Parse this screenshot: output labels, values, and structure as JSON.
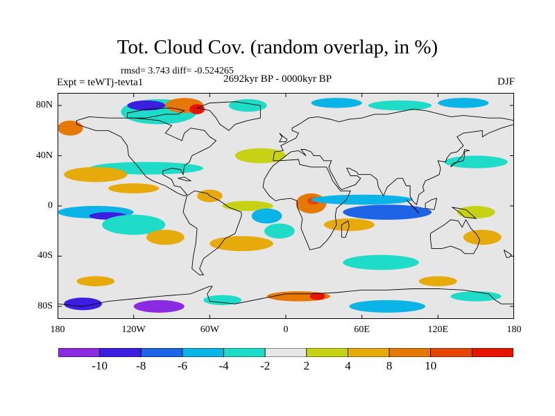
{
  "title": "Tot. Cloud Cov. (random overlap, in %)",
  "stats": "rmsd= 3.743 diff= -0.524265",
  "experiment": "Expt = teWTj-tevta1",
  "period": "2692kyr BP - 0000kyr BP",
  "season": "DJF",
  "map": {
    "lon_range": [
      -180,
      180
    ],
    "lat_range": [
      -90,
      90
    ],
    "y_ticks": [
      {
        "lat": 80,
        "label": "80N"
      },
      {
        "lat": 40,
        "label": "40N"
      },
      {
        "lat": 0,
        "label": "0"
      },
      {
        "lat": -40,
        "label": "40S"
      },
      {
        "lat": -80,
        "label": "80S"
      }
    ],
    "x_ticks": [
      {
        "lon": -180,
        "label": "180"
      },
      {
        "lon": -120,
        "label": "120W"
      },
      {
        "lon": -60,
        "label": "60W"
      },
      {
        "lon": 0,
        "label": "0"
      },
      {
        "lon": 60,
        "label": "60E"
      },
      {
        "lon": 120,
        "label": "120E"
      },
      {
        "lon": 180,
        "label": "180"
      }
    ]
  },
  "colorbar": {
    "colors": [
      "#8a2be2",
      "#3c1ee0",
      "#1e64e6",
      "#0ab4e6",
      "#1edcc8",
      "#e6e6e6",
      "#c8d214",
      "#e6aa0a",
      "#e67805",
      "#e64600",
      "#e61400"
    ],
    "labels": [
      {
        "boundary": 1,
        "label": "-10"
      },
      {
        "boundary": 2,
        "label": "-8"
      },
      {
        "boundary": 3,
        "label": "-6"
      },
      {
        "boundary": 4,
        "label": "-4"
      },
      {
        "boundary": 5,
        "label": "-2"
      },
      {
        "boundary": 6,
        "label": "2"
      },
      {
        "boundary": 7,
        "label": "4"
      },
      {
        "boundary": 8,
        "label": "8"
      },
      {
        "boundary": 9,
        "label": "10"
      }
    ]
  },
  "anomaly_regions": [
    {
      "lon": -110,
      "lat": 30,
      "rx": 45,
      "ry": 5,
      "class": 4
    },
    {
      "lon": -150,
      "lat": 25,
      "rx": 25,
      "ry": 6,
      "class": 7
    },
    {
      "lon": -120,
      "lat": 14,
      "rx": 20,
      "ry": 4,
      "class": 7
    },
    {
      "lon": -170,
      "lat": 62,
      "rx": 10,
      "ry": 6,
      "class": 8
    },
    {
      "lon": -150,
      "lat": -5,
      "rx": 30,
      "ry": 5,
      "class": 3
    },
    {
      "lon": -140,
      "lat": -8,
      "rx": 15,
      "ry": 3,
      "class": 1
    },
    {
      "lon": -120,
      "lat": -15,
      "rx": 25,
      "ry": 8,
      "class": 4
    },
    {
      "lon": -95,
      "lat": -25,
      "rx": 15,
      "ry": 6,
      "class": 7
    },
    {
      "lon": -60,
      "lat": 8,
      "rx": 10,
      "ry": 5,
      "class": 7
    },
    {
      "lon": -30,
      "lat": 0,
      "rx": 20,
      "ry": 4,
      "class": 6
    },
    {
      "lon": -35,
      "lat": -30,
      "rx": 25,
      "ry": 6,
      "class": 7
    },
    {
      "lon": -15,
      "lat": -8,
      "rx": 12,
      "ry": 6,
      "class": 3
    },
    {
      "lon": -5,
      "lat": -20,
      "rx": 12,
      "ry": 6,
      "class": 4
    },
    {
      "lon": 20,
      "lat": 2,
      "rx": 12,
      "ry": 8,
      "class": 8
    },
    {
      "lon": 22,
      "lat": 4,
      "rx": 5,
      "ry": 3,
      "class": 9
    },
    {
      "lon": 60,
      "lat": 5,
      "rx": 40,
      "ry": 4,
      "class": 3
    },
    {
      "lon": 80,
      "lat": -5,
      "rx": 35,
      "ry": 6,
      "class": 2
    },
    {
      "lon": 50,
      "lat": -15,
      "rx": 20,
      "ry": 5,
      "class": 7
    },
    {
      "lon": 75,
      "lat": -45,
      "rx": 30,
      "ry": 6,
      "class": 4
    },
    {
      "lon": 150,
      "lat": 35,
      "rx": 25,
      "ry": 5,
      "class": 4
    },
    {
      "lon": 150,
      "lat": -5,
      "rx": 15,
      "ry": 5,
      "class": 6
    },
    {
      "lon": 155,
      "lat": -25,
      "rx": 15,
      "ry": 6,
      "class": 7
    },
    {
      "lon": -20,
      "lat": 40,
      "rx": 20,
      "ry": 6,
      "class": 6
    },
    {
      "lon": -100,
      "lat": 75,
      "rx": 30,
      "ry": 10,
      "class": 4
    },
    {
      "lon": -110,
      "lat": 80,
      "rx": 15,
      "ry": 4,
      "class": 1
    },
    {
      "lon": -80,
      "lat": 80,
      "rx": 15,
      "ry": 6,
      "class": 8
    },
    {
      "lon": -70,
      "lat": 77,
      "rx": 6,
      "ry": 4,
      "class": 10
    },
    {
      "lon": -30,
      "lat": 80,
      "rx": 15,
      "ry": 5,
      "class": 4
    },
    {
      "lon": 40,
      "lat": 82,
      "rx": 20,
      "ry": 4,
      "class": 3
    },
    {
      "lon": 90,
      "lat": 80,
      "rx": 25,
      "ry": 4,
      "class": 4
    },
    {
      "lon": 140,
      "lat": 82,
      "rx": 20,
      "ry": 4,
      "class": 3
    },
    {
      "lon": -160,
      "lat": -78,
      "rx": 15,
      "ry": 5,
      "class": 1
    },
    {
      "lon": -100,
      "lat": -80,
      "rx": 20,
      "ry": 5,
      "class": 0
    },
    {
      "lon": -50,
      "lat": -75,
      "rx": 15,
      "ry": 4,
      "class": 4
    },
    {
      "lon": 10,
      "lat": -72,
      "rx": 25,
      "ry": 4,
      "class": 8
    },
    {
      "lon": 25,
      "lat": -72,
      "rx": 6,
      "ry": 3,
      "class": 10
    },
    {
      "lon": 80,
      "lat": -80,
      "rx": 30,
      "ry": 5,
      "class": 3
    },
    {
      "lon": 150,
      "lat": -72,
      "rx": 20,
      "ry": 4,
      "class": 4
    },
    {
      "lon": -150,
      "lat": -60,
      "rx": 15,
      "ry": 4,
      "class": 7
    },
    {
      "lon": 120,
      "lat": -60,
      "rx": 15,
      "ry": 4,
      "class": 7
    }
  ],
  "coastlines": [
    [
      [
        -165,
        65
      ],
      [
        -150,
        60
      ],
      [
        -140,
        60
      ],
      [
        -130,
        55
      ],
      [
        -125,
        48
      ],
      [
        -124,
        40
      ],
      [
        -118,
        33
      ],
      [
        -110,
        23
      ],
      [
        -105,
        20
      ],
      [
        -95,
        16
      ],
      [
        -85,
        10
      ],
      [
        -80,
        8
      ],
      [
        -78,
        9
      ],
      [
        -83,
        15
      ],
      [
        -88,
        16
      ],
      [
        -90,
        21
      ],
      [
        -97,
        25
      ],
      [
        -97,
        28
      ],
      [
        -90,
        30
      ],
      [
        -83,
        29
      ],
      [
        -81,
        25
      ],
      [
        -80,
        32
      ],
      [
        -76,
        35
      ],
      [
        -74,
        40
      ],
      [
        -70,
        42
      ],
      [
        -66,
        44
      ],
      [
        -60,
        47
      ],
      [
        -55,
        52
      ],
      [
        -60,
        55
      ],
      [
        -64,
        60
      ],
      [
        -75,
        62
      ],
      [
        -80,
        58
      ],
      [
        -82,
        52
      ],
      [
        -95,
        58
      ],
      [
        -90,
        64
      ],
      [
        -100,
        68
      ],
      [
        -120,
        70
      ],
      [
        -140,
        70
      ],
      [
        -155,
        71
      ],
      [
        -165,
        68
      ],
      [
        -165,
        65
      ]
    ],
    [
      [
        -78,
        8
      ],
      [
        -80,
        0
      ],
      [
        -81,
        -5
      ],
      [
        -76,
        -14
      ],
      [
        -70,
        -18
      ],
      [
        -71,
        -30
      ],
      [
        -73,
        -40
      ],
      [
        -74,
        -50
      ],
      [
        -68,
        -55
      ],
      [
        -65,
        -55
      ],
      [
        -68,
        -50
      ],
      [
        -65,
        -42
      ],
      [
        -57,
        -36
      ],
      [
        -53,
        -33
      ],
      [
        -48,
        -26
      ],
      [
        -40,
        -22
      ],
      [
        -35,
        -8
      ],
      [
        -35,
        -5
      ],
      [
        -45,
        -1
      ],
      [
        -52,
        4
      ],
      [
        -60,
        8
      ],
      [
        -62,
        10
      ],
      [
        -72,
        12
      ],
      [
        -78,
        8
      ]
    ],
    [
      [
        -18,
        15
      ],
      [
        -17,
        21
      ],
      [
        -13,
        28
      ],
      [
        -10,
        32
      ],
      [
        -5,
        36
      ],
      [
        10,
        37
      ],
      [
        11,
        33
      ],
      [
        20,
        31
      ],
      [
        32,
        31
      ],
      [
        34,
        27
      ],
      [
        37,
        20
      ],
      [
        43,
        12
      ],
      [
        51,
        12
      ],
      [
        48,
        5
      ],
      [
        40,
        -2
      ],
      [
        39,
        -8
      ],
      [
        40,
        -15
      ],
      [
        35,
        -24
      ],
      [
        32,
        -28
      ],
      [
        27,
        -33
      ],
      [
        19,
        -35
      ],
      [
        17,
        -30
      ],
      [
        12,
        -18
      ],
      [
        13,
        -10
      ],
      [
        9,
        -1
      ],
      [
        9,
        4
      ],
      [
        4,
        6
      ],
      [
        -5,
        5
      ],
      [
        -8,
        4
      ],
      [
        -13,
        8
      ],
      [
        -18,
        15
      ]
    ],
    [
      [
        -10,
        36
      ],
      [
        -9,
        43
      ],
      [
        -2,
        44
      ],
      [
        -4,
        48
      ],
      [
        2,
        51
      ],
      [
        8,
        54
      ],
      [
        10,
        58
      ],
      [
        5,
        60
      ],
      [
        5,
        62
      ],
      [
        12,
        66
      ],
      [
        18,
        70
      ],
      [
        25,
        71
      ],
      [
        35,
        69
      ],
      [
        42,
        67
      ],
      [
        50,
        69
      ],
      [
        60,
        70
      ],
      [
        70,
        73
      ],
      [
        80,
        73
      ],
      [
        100,
        77
      ],
      [
        110,
        76
      ],
      [
        130,
        71
      ],
      [
        140,
        72
      ],
      [
        160,
        70
      ],
      [
        170,
        70
      ],
      [
        180,
        68
      ],
      [
        180,
        65
      ],
      [
        170,
        62
      ],
      [
        160,
        58
      ],
      [
        155,
        55
      ],
      [
        155,
        60
      ],
      [
        140,
        58
      ],
      [
        135,
        55
      ],
      [
        140,
        48
      ],
      [
        135,
        43
      ],
      [
        130,
        42
      ],
      [
        127,
        38
      ],
      [
        126,
        35
      ],
      [
        120,
        36
      ],
      [
        122,
        30
      ],
      [
        121,
        25
      ],
      [
        117,
        23
      ],
      [
        110,
        20
      ],
      [
        108,
        15
      ],
      [
        109,
        12
      ],
      [
        105,
        9
      ],
      [
        103,
        1
      ],
      [
        100,
        4
      ],
      [
        98,
        8
      ],
      [
        98,
        16
      ],
      [
        95,
        16
      ],
      [
        92,
        22
      ],
      [
        88,
        22
      ],
      [
        80,
        15
      ],
      [
        77,
        8
      ],
      [
        73,
        15
      ],
      [
        72,
        21
      ],
      [
        67,
        25
      ],
      [
        57,
        25
      ],
      [
        56,
        27
      ],
      [
        50,
        30
      ],
      [
        48,
        30
      ],
      [
        51,
        24
      ],
      [
        56,
        24
      ],
      [
        59,
        22
      ],
      [
        55,
        17
      ],
      [
        44,
        13
      ],
      [
        42,
        15
      ],
      [
        35,
        28
      ],
      [
        34,
        31
      ],
      [
        36,
        36
      ],
      [
        30,
        36
      ],
      [
        27,
        40
      ],
      [
        22,
        40
      ],
      [
        20,
        43
      ],
      [
        15,
        45
      ],
      [
        12,
        45
      ],
      [
        16,
        40
      ],
      [
        10,
        44
      ],
      [
        4,
        43
      ],
      [
        0,
        40
      ],
      [
        -5,
        36
      ],
      [
        -10,
        36
      ]
    ],
    [
      [
        114,
        -22
      ],
      [
        114,
        -26
      ],
      [
        115,
        -34
      ],
      [
        123,
        -34
      ],
      [
        130,
        -32
      ],
      [
        138,
        -35
      ],
      [
        141,
        -38
      ],
      [
        148,
        -38
      ],
      [
        151,
        -33
      ],
      [
        153,
        -27
      ],
      [
        150,
        -22
      ],
      [
        146,
        -18
      ],
      [
        142,
        -11
      ],
      [
        139,
        -17
      ],
      [
        136,
        -12
      ],
      [
        130,
        -11
      ],
      [
        125,
        -15
      ],
      [
        114,
        -22
      ]
    ],
    [
      [
        -180,
        -78
      ],
      [
        -160,
        -80
      ],
      [
        -140,
        -76
      ],
      [
        -120,
        -74
      ],
      [
        -100,
        -72
      ],
      [
        -75,
        -70
      ],
      [
        -60,
        -64
      ],
      [
        -58,
        -64
      ],
      [
        -62,
        -70
      ],
      [
        -60,
        -76
      ],
      [
        -40,
        -78
      ],
      [
        -20,
        -74
      ],
      [
        0,
        -70
      ],
      [
        20,
        -70
      ],
      [
        40,
        -69
      ],
      [
        60,
        -67
      ],
      [
        80,
        -67
      ],
      [
        100,
        -66
      ],
      [
        120,
        -66
      ],
      [
        140,
        -67
      ],
      [
        160,
        -70
      ],
      [
        165,
        -75
      ],
      [
        170,
        -78
      ],
      [
        180,
        -78
      ]
    ],
    [
      [
        -45,
        60
      ],
      [
        -40,
        65
      ],
      [
        -30,
        68
      ],
      [
        -20,
        70
      ],
      [
        -20,
        80
      ],
      [
        -40,
        83
      ],
      [
        -60,
        82
      ],
      [
        -70,
        78
      ],
      [
        -60,
        76
      ],
      [
        -55,
        70
      ],
      [
        -52,
        65
      ],
      [
        -45,
        60
      ]
    ],
    [
      [
        -5,
        58
      ],
      [
        -3,
        55
      ],
      [
        -5,
        51
      ],
      [
        0,
        51
      ],
      [
        1,
        53
      ],
      [
        -3,
        56
      ],
      [
        -5,
        58
      ]
    ],
    [
      [
        130,
        31
      ],
      [
        132,
        34
      ],
      [
        136,
        35
      ],
      [
        140,
        36
      ],
      [
        141,
        40
      ],
      [
        141,
        43
      ],
      [
        143,
        44
      ],
      [
        145,
        44
      ],
      [
        141,
        45
      ],
      [
        140,
        41
      ],
      [
        135,
        35
      ],
      [
        130,
        31
      ]
    ],
    [
      [
        95,
        5
      ],
      [
        105,
        -6
      ],
      [
        100,
        0
      ],
      [
        95,
        5
      ]
    ],
    [
      [
        110,
        -2
      ],
      [
        110,
        2
      ],
      [
        115,
        5
      ],
      [
        119,
        6
      ],
      [
        118,
        1
      ],
      [
        117,
        -3
      ],
      [
        110,
        -2
      ]
    ],
    [
      [
        131,
        -1
      ],
      [
        142,
        -3
      ],
      [
        150,
        -10
      ],
      [
        141,
        -9
      ],
      [
        137,
        -5
      ],
      [
        131,
        -1
      ]
    ],
    [
      [
        172,
        -35
      ],
      [
        175,
        -37
      ],
      [
        178,
        -39
      ],
      [
        176,
        -41
      ],
      [
        174,
        -41
      ],
      [
        172,
        -35
      ]
    ],
    [
      [
        44,
        -25
      ],
      [
        44,
        -15
      ],
      [
        49,
        -12
      ],
      [
        50,
        -16
      ],
      [
        47,
        -25
      ],
      [
        44,
        -25
      ]
    ],
    [
      [
        -85,
        22
      ],
      [
        -80,
        23
      ],
      [
        -75,
        20
      ],
      [
        -78,
        20
      ],
      [
        -85,
        22
      ]
    ],
    [
      [
        -125,
        70
      ],
      [
        -110,
        70
      ],
      [
        -95,
        73
      ],
      [
        -85,
        73
      ],
      [
        -80,
        76
      ],
      [
        -90,
        78
      ],
      [
        -110,
        77
      ],
      [
        -125,
        74
      ],
      [
        -125,
        70
      ]
    ]
  ]
}
